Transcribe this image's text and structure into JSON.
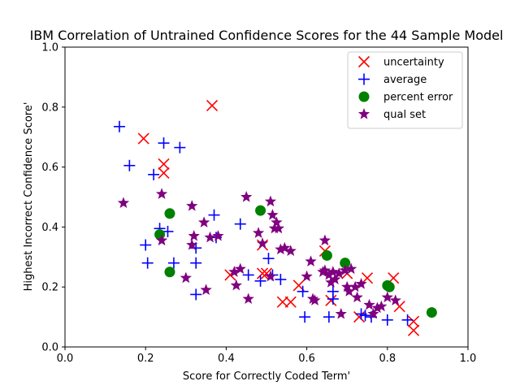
{
  "chart_data": {
    "type": "scatter",
    "title": "IBM Correlation of Untrained Confidence Scores for the 44 Sample Model",
    "xlabel": "Score for Correctly Coded Term'",
    "ylabel": "Highest Incorrect Confidence Score'",
    "xlim": [
      0.0,
      1.0
    ],
    "ylim": [
      0.0,
      1.0
    ],
    "xticks": [
      "0.0",
      "0.2",
      "0.4",
      "0.6",
      "0.8",
      "1.0"
    ],
    "yticks": [
      "0.0",
      "0.2",
      "0.4",
      "0.6",
      "0.8",
      "1.0"
    ],
    "grid": false,
    "legend_position": "upper-right",
    "series": [
      {
        "name": "uncertainty",
        "marker": "x",
        "color": "#ff0000",
        "points": [
          [
            0.195,
            0.695
          ],
          [
            0.245,
            0.61
          ],
          [
            0.245,
            0.58
          ],
          [
            0.365,
            0.805
          ],
          [
            0.41,
            0.24
          ],
          [
            0.49,
            0.34
          ],
          [
            0.49,
            0.245
          ],
          [
            0.5,
            0.245
          ],
          [
            0.54,
            0.15
          ],
          [
            0.56,
            0.15
          ],
          [
            0.58,
            0.205
          ],
          [
            0.645,
            0.32
          ],
          [
            0.66,
            0.155
          ],
          [
            0.7,
            0.245
          ],
          [
            0.73,
            0.1
          ],
          [
            0.75,
            0.23
          ],
          [
            0.815,
            0.23
          ],
          [
            0.83,
            0.135
          ],
          [
            0.865,
            0.085
          ],
          [
            0.865,
            0.055
          ]
        ]
      },
      {
        "name": "average",
        "marker": "+",
        "color": "#0000ff",
        "points": [
          [
            0.135,
            0.735
          ],
          [
            0.16,
            0.605
          ],
          [
            0.2,
            0.34
          ],
          [
            0.205,
            0.28
          ],
          [
            0.22,
            0.575
          ],
          [
            0.235,
            0.395
          ],
          [
            0.245,
            0.68
          ],
          [
            0.255,
            0.385
          ],
          [
            0.27,
            0.28
          ],
          [
            0.285,
            0.665
          ],
          [
            0.325,
            0.33
          ],
          [
            0.325,
            0.28
          ],
          [
            0.325,
            0.175
          ],
          [
            0.37,
            0.44
          ],
          [
            0.375,
            0.365
          ],
          [
            0.435,
            0.41
          ],
          [
            0.455,
            0.24
          ],
          [
            0.485,
            0.22
          ],
          [
            0.505,
            0.295
          ],
          [
            0.515,
            0.24
          ],
          [
            0.535,
            0.225
          ],
          [
            0.59,
            0.185
          ],
          [
            0.595,
            0.1
          ],
          [
            0.655,
            0.1
          ],
          [
            0.665,
            0.185
          ],
          [
            0.665,
            0.16
          ],
          [
            0.735,
            0.11
          ],
          [
            0.745,
            0.105
          ],
          [
            0.76,
            0.1
          ],
          [
            0.8,
            0.09
          ],
          [
            0.85,
            0.09
          ]
        ]
      },
      {
        "name": "percent error",
        "marker": "o",
        "color": "#008000",
        "points": [
          [
            0.235,
            0.375
          ],
          [
            0.26,
            0.445
          ],
          [
            0.26,
            0.25
          ],
          [
            0.485,
            0.455
          ],
          [
            0.65,
            0.305
          ],
          [
            0.695,
            0.28
          ],
          [
            0.8,
            0.205
          ],
          [
            0.805,
            0.2
          ],
          [
            0.91,
            0.115
          ]
        ]
      },
      {
        "name": "qual set",
        "marker": "*",
        "color": "#800080",
        "points": [
          [
            0.145,
            0.48
          ],
          [
            0.24,
            0.51
          ],
          [
            0.24,
            0.355
          ],
          [
            0.3,
            0.23
          ],
          [
            0.315,
            0.47
          ],
          [
            0.315,
            0.34
          ],
          [
            0.32,
            0.37
          ],
          [
            0.345,
            0.415
          ],
          [
            0.35,
            0.19
          ],
          [
            0.36,
            0.365
          ],
          [
            0.38,
            0.37
          ],
          [
            0.42,
            0.25
          ],
          [
            0.425,
            0.205
          ],
          [
            0.435,
            0.26
          ],
          [
            0.45,
            0.5
          ],
          [
            0.455,
            0.16
          ],
          [
            0.48,
            0.38
          ],
          [
            0.49,
            0.345
          ],
          [
            0.51,
            0.485
          ],
          [
            0.515,
            0.44
          ],
          [
            0.52,
            0.395
          ],
          [
            0.525,
            0.415
          ],
          [
            0.53,
            0.395
          ],
          [
            0.535,
            0.325
          ],
          [
            0.545,
            0.33
          ],
          [
            0.56,
            0.32
          ],
          [
            0.51,
            0.235
          ],
          [
            0.6,
            0.235
          ],
          [
            0.61,
            0.285
          ],
          [
            0.615,
            0.16
          ],
          [
            0.62,
            0.155
          ],
          [
            0.645,
            0.355
          ],
          [
            0.645,
            0.255
          ],
          [
            0.655,
            0.24
          ],
          [
            0.66,
            0.215
          ],
          [
            0.665,
            0.25
          ],
          [
            0.67,
            0.225
          ],
          [
            0.68,
            0.245
          ],
          [
            0.685,
            0.11
          ],
          [
            0.695,
            0.255
          ],
          [
            0.7,
            0.2
          ],
          [
            0.705,
            0.185
          ],
          [
            0.71,
            0.26
          ],
          [
            0.72,
            0.2
          ],
          [
            0.725,
            0.165
          ],
          [
            0.735,
            0.21
          ],
          [
            0.755,
            0.14
          ],
          [
            0.765,
            0.11
          ],
          [
            0.775,
            0.13
          ],
          [
            0.785,
            0.135
          ],
          [
            0.8,
            0.165
          ],
          [
            0.82,
            0.155
          ],
          [
            0.64,
            0.25
          ]
        ]
      }
    ]
  }
}
